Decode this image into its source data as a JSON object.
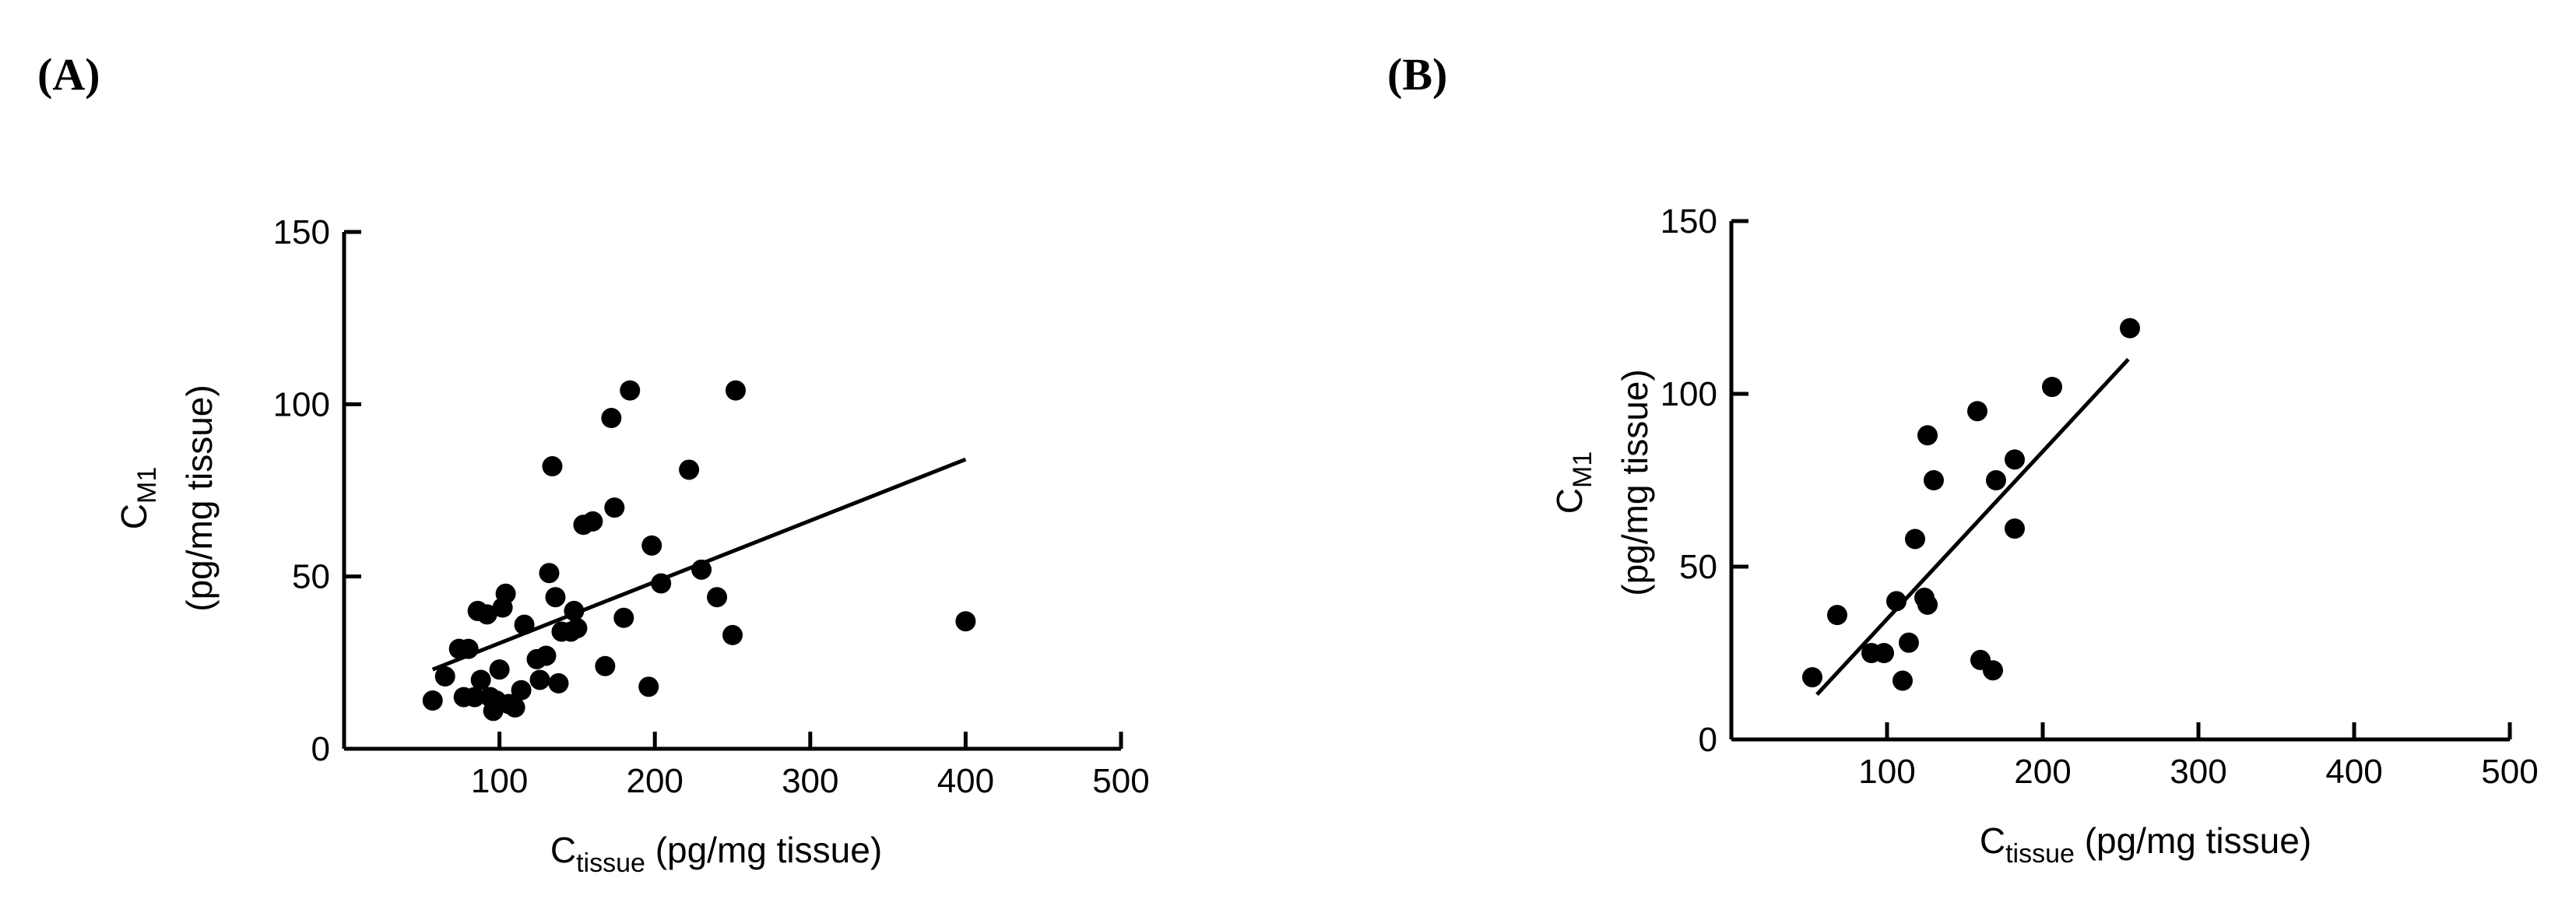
{
  "chart_data": [
    {
      "type": "scatter",
      "panel_label": "(A)",
      "xlabel": {
        "main": "C",
        "sub": "tissue",
        "rest": " (pg/mg tissue)"
      },
      "ylabel": {
        "main": "C",
        "sub": "M1",
        "rest": "(pg/mg tissue)"
      },
      "xlim": [
        0,
        500
      ],
      "ylim": [
        0,
        150
      ],
      "xticks": [
        100,
        200,
        300,
        400,
        500
      ],
      "yticks": [
        0,
        50,
        100,
        150
      ],
      "points": [
        [
          57,
          14
        ],
        [
          65,
          21
        ],
        [
          74,
          29
        ],
        [
          77,
          15
        ],
        [
          80,
          29
        ],
        [
          84,
          15
        ],
        [
          86,
          40
        ],
        [
          88,
          20
        ],
        [
          92,
          39
        ],
        [
          94,
          15
        ],
        [
          96,
          11
        ],
        [
          98,
          14
        ],
        [
          100,
          23
        ],
        [
          102,
          41
        ],
        [
          104,
          45
        ],
        [
          106,
          13
        ],
        [
          110,
          12
        ],
        [
          114,
          17
        ],
        [
          116,
          36
        ],
        [
          124,
          26
        ],
        [
          126,
          20
        ],
        [
          130,
          27
        ],
        [
          132,
          51
        ],
        [
          134,
          82
        ],
        [
          136,
          44
        ],
        [
          138,
          19
        ],
        [
          140,
          34
        ],
        [
          146,
          34
        ],
        [
          148,
          40
        ],
        [
          150,
          35
        ],
        [
          154,
          65
        ],
        [
          160,
          66
        ],
        [
          168,
          24
        ],
        [
          172,
          96
        ],
        [
          174,
          70
        ],
        [
          180,
          38
        ],
        [
          184,
          104
        ],
        [
          196,
          18
        ],
        [
          198,
          59
        ],
        [
          204,
          48
        ],
        [
          222,
          81
        ],
        [
          230,
          52
        ],
        [
          240,
          44
        ],
        [
          250,
          33
        ],
        [
          252,
          104
        ],
        [
          400,
          37
        ]
      ],
      "fit": {
        "x": [
          57,
          400
        ],
        "y": [
          23,
          84
        ]
      }
    },
    {
      "type": "scatter",
      "panel_label": "(B)",
      "xlabel": {
        "main": "C",
        "sub": "tissue",
        "rest": " (pg/mg tissue)"
      },
      "ylabel": {
        "main": "C",
        "sub": "M1",
        "rest": "(pg/mg tissue)"
      },
      "xlim": [
        0,
        500
      ],
      "ylim": [
        0,
        150
      ],
      "xticks": [
        100,
        200,
        300,
        400,
        500
      ],
      "yticks": [
        0,
        50,
        100,
        150
      ],
      "points": [
        [
          52,
          18
        ],
        [
          68,
          36
        ],
        [
          90,
          25
        ],
        [
          98,
          25
        ],
        [
          106,
          40
        ],
        [
          110,
          17
        ],
        [
          114,
          28
        ],
        [
          118,
          58
        ],
        [
          124,
          41
        ],
        [
          126,
          39
        ],
        [
          126,
          88
        ],
        [
          130,
          75
        ],
        [
          158,
          95
        ],
        [
          160,
          23
        ],
        [
          168,
          20
        ],
        [
          170,
          75
        ],
        [
          182,
          81
        ],
        [
          182,
          61
        ],
        [
          206,
          102
        ],
        [
          256,
          119
        ]
      ],
      "fit": {
        "x": [
          55,
          255
        ],
        "y": [
          13,
          110
        ]
      }
    }
  ]
}
